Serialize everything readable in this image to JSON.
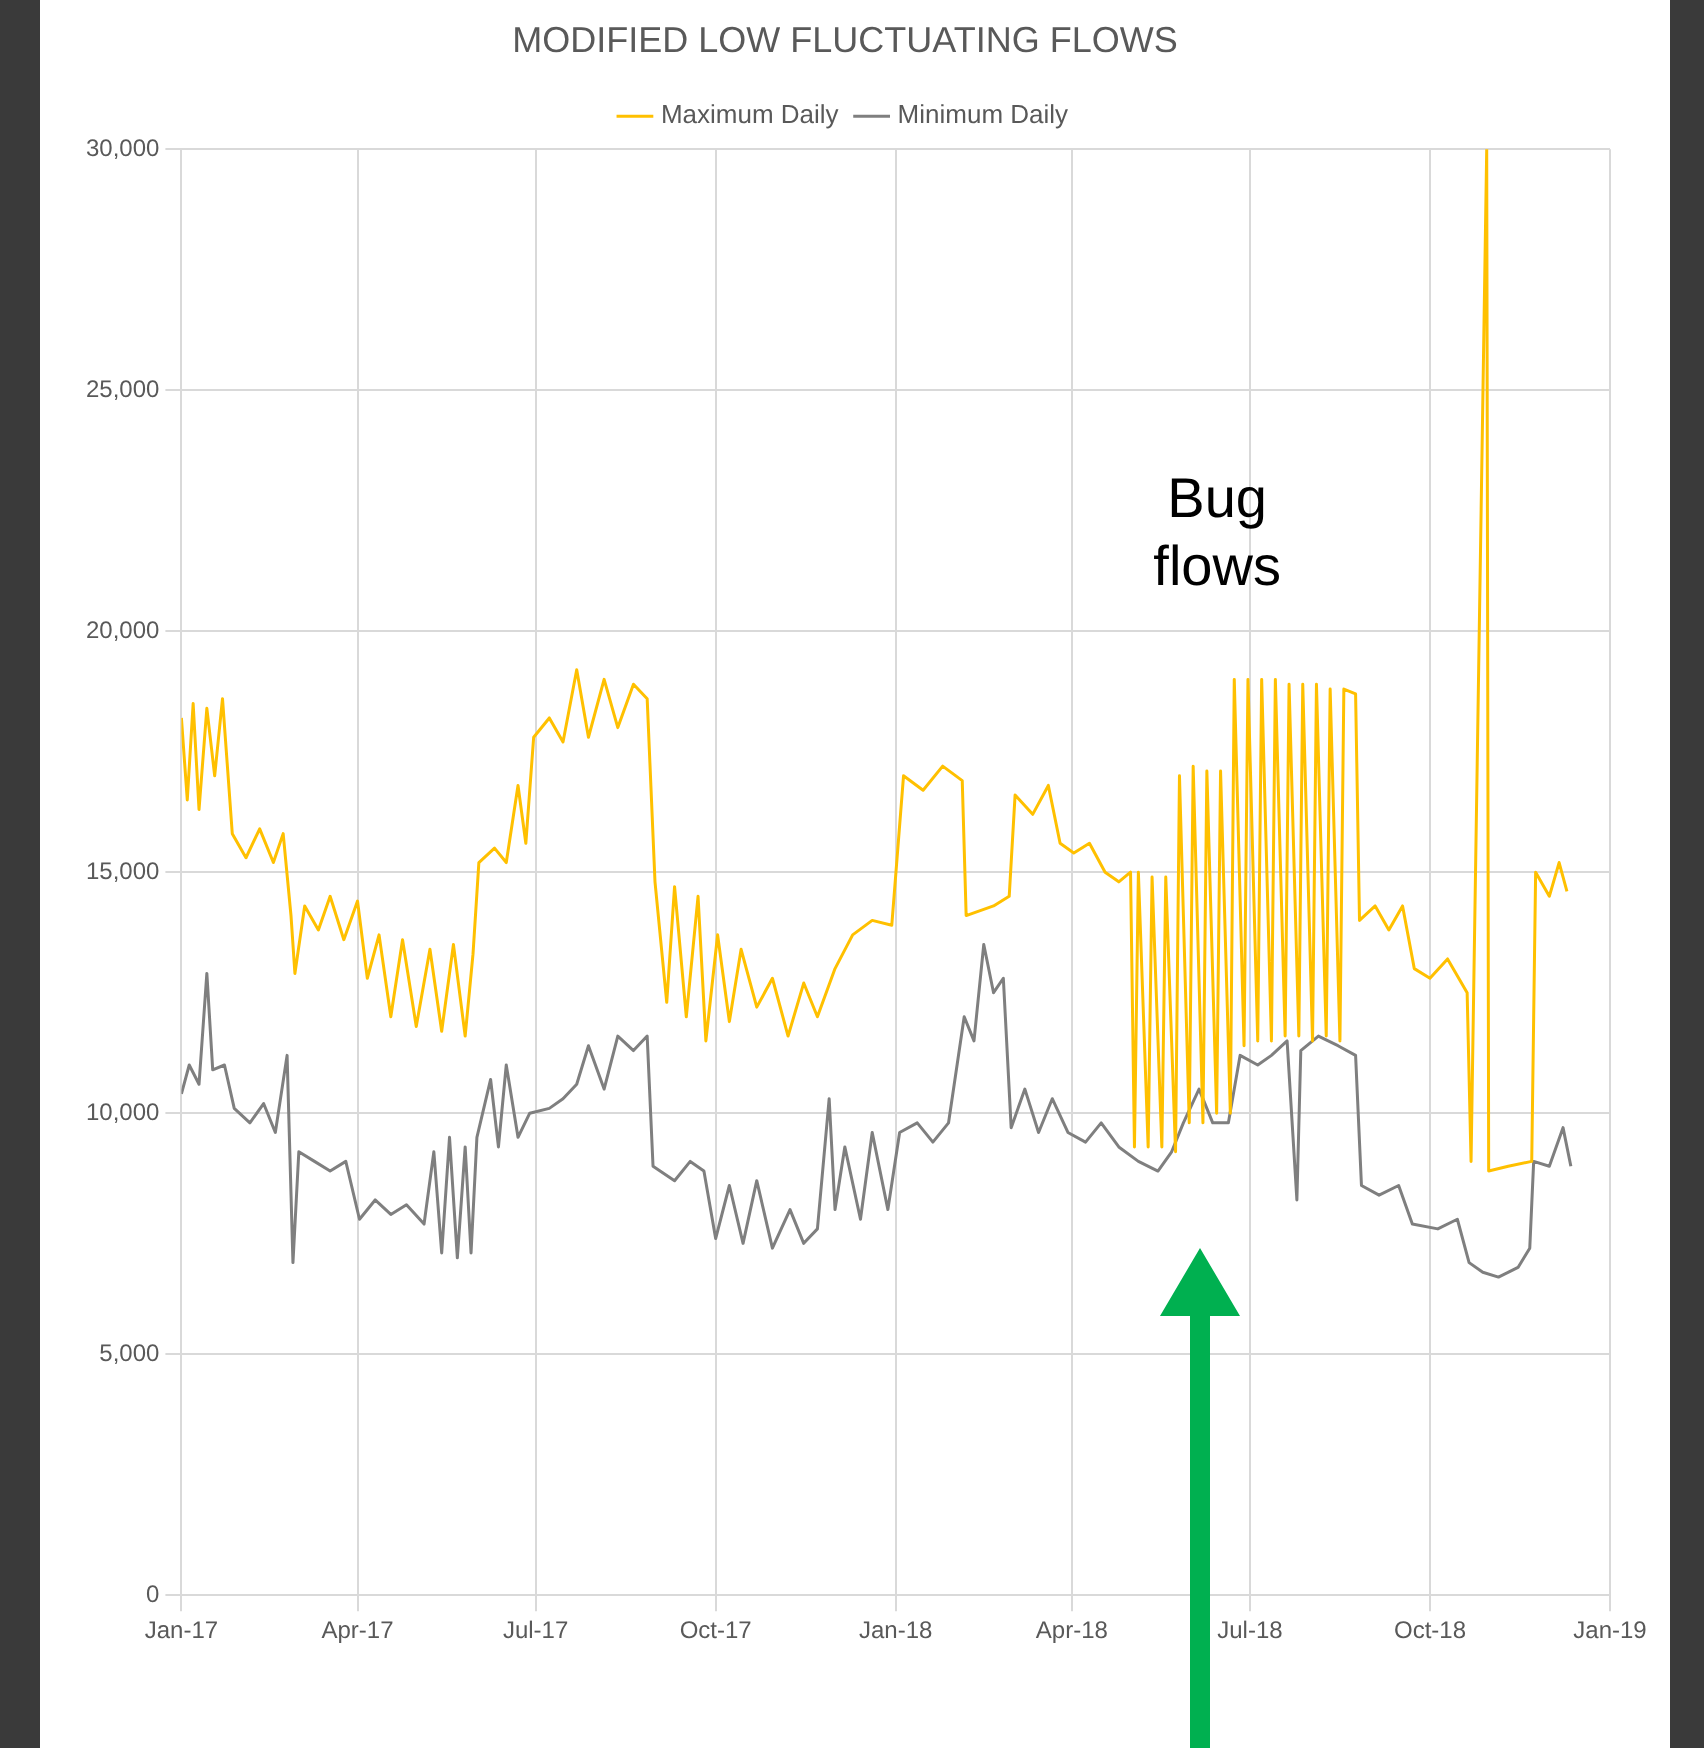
{
  "chart_data": {
    "type": "line",
    "title": "MODIFIED LOW FLUCTUATING FLOWS",
    "legend": "top",
    "grid": true,
    "marker": "none",
    "line_style": "solid",
    "xlim": [
      "2017-01-01",
      "2019-01-01"
    ],
    "xticks": [
      {
        "value": "2017-01",
        "label": "Jan-17"
      },
      {
        "value": "2017-04",
        "label": "Apr-17"
      },
      {
        "value": "2017-07",
        "label": "Jul-17"
      },
      {
        "value": "2017-10",
        "label": "Oct-17"
      },
      {
        "value": "2018-01",
        "label": "Jan-18"
      },
      {
        "value": "2018-04",
        "label": "Apr-18"
      },
      {
        "value": "2018-07",
        "label": "Jul-18"
      },
      {
        "value": "2018-10",
        "label": "Oct-18"
      },
      {
        "value": "2019-01",
        "label": "Jan-19"
      }
    ],
    "ylim": [
      0,
      30000
    ],
    "yticks": [
      {
        "value": 0,
        "label": "0"
      },
      {
        "value": 5000,
        "label": "5,000"
      },
      {
        "value": 10000,
        "label": "10,000"
      },
      {
        "value": 15000,
        "label": "15,000"
      },
      {
        "value": 20000,
        "label": "20,000"
      },
      {
        "value": 25000,
        "label": "25,000"
      },
      {
        "value": 30000,
        "label": "30,000"
      }
    ],
    "annotations": [
      "Bug flows"
    ],
    "series": [
      {
        "name": "Maximum Daily",
        "color": "#ffc000",
        "x": [
          "2017-01-01",
          "2017-01-04",
          "2017-01-07",
          "2017-01-10",
          "2017-01-14",
          "2017-01-18",
          "2017-01-22",
          "2017-01-27",
          "2017-02-03",
          "2017-02-10",
          "2017-02-17",
          "2017-02-22",
          "2017-02-26",
          "2017-02-28",
          "2017-03-05",
          "2017-03-12",
          "2017-03-18",
          "2017-03-25",
          "2017-04-01",
          "2017-04-06",
          "2017-04-12",
          "2017-04-18",
          "2017-04-24",
          "2017-05-01",
          "2017-05-08",
          "2017-05-14",
          "2017-05-20",
          "2017-05-26",
          "2017-05-30",
          "2017-06-02",
          "2017-06-10",
          "2017-06-16",
          "2017-06-22",
          "2017-06-26",
          "2017-06-30",
          "2017-07-08",
          "2017-07-15",
          "2017-07-22",
          "2017-07-28",
          "2017-08-05",
          "2017-08-12",
          "2017-08-20",
          "2017-08-27",
          "2017-08-31",
          "2017-09-06",
          "2017-09-10",
          "2017-09-16",
          "2017-09-22",
          "2017-09-26",
          "2017-10-02",
          "2017-10-08",
          "2017-10-14",
          "2017-10-22",
          "2017-10-30",
          "2017-11-07",
          "2017-11-15",
          "2017-11-22",
          "2017-12-01",
          "2017-12-10",
          "2017-12-20",
          "2017-12-30",
          "2018-01-05",
          "2018-01-15",
          "2018-01-25",
          "2018-02-04",
          "2018-02-06",
          "2018-02-20",
          "2018-02-28",
          "2018-03-03",
          "2018-03-12",
          "2018-03-20",
          "2018-03-26",
          "2018-04-02",
          "2018-04-10",
          "2018-04-18",
          "2018-04-25",
          "2018-05-01",
          "2018-05-03",
          "2018-05-05",
          "2018-05-10",
          "2018-05-12",
          "2018-05-17",
          "2018-05-19",
          "2018-05-24",
          "2018-05-26",
          "2018-05-31",
          "2018-06-02",
          "2018-06-07",
          "2018-06-09",
          "2018-06-14",
          "2018-06-16",
          "2018-06-21",
          "2018-06-23",
          "2018-06-28",
          "2018-06-30",
          "2018-07-05",
          "2018-07-07",
          "2018-07-12",
          "2018-07-14",
          "2018-07-19",
          "2018-07-21",
          "2018-07-26",
          "2018-07-28",
          "2018-08-02",
          "2018-08-04",
          "2018-08-09",
          "2018-08-11",
          "2018-08-16",
          "2018-08-18",
          "2018-08-24",
          "2018-08-26",
          "2018-09-03",
          "2018-09-10",
          "2018-09-17",
          "2018-09-23",
          "2018-10-01",
          "2018-10-10",
          "2018-10-20",
          "2018-10-22",
          "2018-10-30",
          "2018-10-31",
          "2018-11-10",
          "2018-11-22",
          "2018-11-24",
          "2018-12-01",
          "2018-12-06",
          "2018-12-10"
        ],
        "values": [
          18200,
          16500,
          18500,
          16300,
          18400,
          17000,
          18600,
          15800,
          15300,
          15900,
          15200,
          15800,
          14100,
          12900,
          14300,
          13800,
          14500,
          13600,
          14400,
          12800,
          13700,
          12000,
          13600,
          11800,
          13400,
          11700,
          13500,
          11600,
          13300,
          15200,
          15500,
          15200,
          16800,
          15600,
          17800,
          18200,
          17700,
          19200,
          17800,
          19000,
          18000,
          18900,
          18600,
          14800,
          12300,
          14700,
          12000,
          14500,
          11500,
          13700,
          11900,
          13400,
          12200,
          12800,
          11600,
          12700,
          12000,
          13000,
          13700,
          14000,
          13900,
          17000,
          16700,
          17200,
          16900,
          14100,
          14300,
          14500,
          16600,
          16200,
          16800,
          15600,
          15400,
          15600,
          15000,
          14800,
          15000,
          9300,
          15000,
          9300,
          14900,
          9300,
          14900,
          9200,
          17000,
          9800,
          17200,
          9800,
          17100,
          10000,
          17100,
          10000,
          19000,
          11400,
          19000,
          11500,
          19000,
          11500,
          19000,
          11600,
          18900,
          11600,
          18900,
          11500,
          18900,
          11600,
          18800,
          11500,
          18800,
          18700,
          14000,
          14300,
          13800,
          14300,
          13000,
          12800,
          13200,
          12500,
          9000,
          30000,
          8800,
          8900,
          9000,
          15000,
          14500,
          15200,
          14600
        ]
      },
      {
        "name": "Minimum Daily",
        "color": "#7f7f7f",
        "x": [
          "2017-01-01",
          "2017-01-05",
          "2017-01-10",
          "2017-01-14",
          "2017-01-17",
          "2017-01-23",
          "2017-01-28",
          "2017-02-05",
          "2017-02-12",
          "2017-02-18",
          "2017-02-24",
          "2017-02-27",
          "2017-03-02",
          "2017-03-10",
          "2017-03-18",
          "2017-03-26",
          "2017-04-02",
          "2017-04-10",
          "2017-04-18",
          "2017-04-26",
          "2017-05-05",
          "2017-05-10",
          "2017-05-14",
          "2017-05-18",
          "2017-05-22",
          "2017-05-26",
          "2017-05-29",
          "2017-06-01",
          "2017-06-08",
          "2017-06-12",
          "2017-06-16",
          "2017-06-22",
          "2017-06-28",
          "2017-07-08",
          "2017-07-15",
          "2017-07-22",
          "2017-07-28",
          "2017-08-05",
          "2017-08-12",
          "2017-08-20",
          "2017-08-27",
          "2017-08-30",
          "2017-09-10",
          "2017-09-18",
          "2017-09-25",
          "2017-10-01",
          "2017-10-08",
          "2017-10-15",
          "2017-10-22",
          "2017-10-30",
          "2017-11-08",
          "2017-11-15",
          "2017-11-22",
          "2017-11-28",
          "2017-12-01",
          "2017-12-06",
          "2017-12-14",
          "2017-12-20",
          "2017-12-28",
          "2018-01-03",
          "2018-01-12",
          "2018-01-20",
          "2018-01-28",
          "2018-02-05",
          "2018-02-10",
          "2018-02-15",
          "2018-02-20",
          "2018-02-25",
          "2018-03-01",
          "2018-03-08",
          "2018-03-15",
          "2018-03-22",
          "2018-03-30",
          "2018-04-08",
          "2018-04-16",
          "2018-04-25",
          "2018-05-05",
          "2018-05-15",
          "2018-05-22",
          "2018-05-28",
          "2018-06-05",
          "2018-06-12",
          "2018-06-20",
          "2018-06-26",
          "2018-07-05",
          "2018-07-12",
          "2018-07-20",
          "2018-07-25",
          "2018-07-27",
          "2018-08-05",
          "2018-08-15",
          "2018-08-24",
          "2018-08-27",
          "2018-09-05",
          "2018-09-15",
          "2018-09-22",
          "2018-10-05",
          "2018-10-15",
          "2018-10-21",
          "2018-10-28",
          "2018-11-05",
          "2018-11-15",
          "2018-11-21",
          "2018-11-23",
          "2018-12-01",
          "2018-12-08",
          "2018-12-12"
        ],
        "values": [
          10400,
          11000,
          10600,
          12900,
          10900,
          11000,
          10100,
          9800,
          10200,
          9600,
          11200,
          6900,
          9200,
          9000,
          8800,
          9000,
          7800,
          8200,
          7900,
          8100,
          7700,
          9200,
          7100,
          9500,
          7000,
          9300,
          7100,
          9500,
          10700,
          9300,
          11000,
          9500,
          10000,
          10100,
          10300,
          10600,
          11400,
          10500,
          11600,
          11300,
          11600,
          8900,
          8600,
          9000,
          8800,
          7400,
          8500,
          7300,
          8600,
          7200,
          8000,
          7300,
          7600,
          10300,
          8000,
          9300,
          7800,
          9600,
          8000,
          9600,
          9800,
          9400,
          9800,
          12000,
          11500,
          13500,
          12500,
          12800,
          9700,
          10500,
          9600,
          10300,
          9600,
          9400,
          9800,
          9300,
          9000,
          8800,
          9200,
          9800,
          10500,
          9800,
          9800,
          11200,
          11000,
          11200,
          11500,
          8200,
          11300,
          11600,
          11400,
          11200,
          8500,
          8300,
          8500,
          7700,
          7600,
          7800,
          6900,
          6700,
          6600,
          6800,
          7200,
          9000,
          8900,
          9700,
          8900
        ]
      }
    ]
  }
}
